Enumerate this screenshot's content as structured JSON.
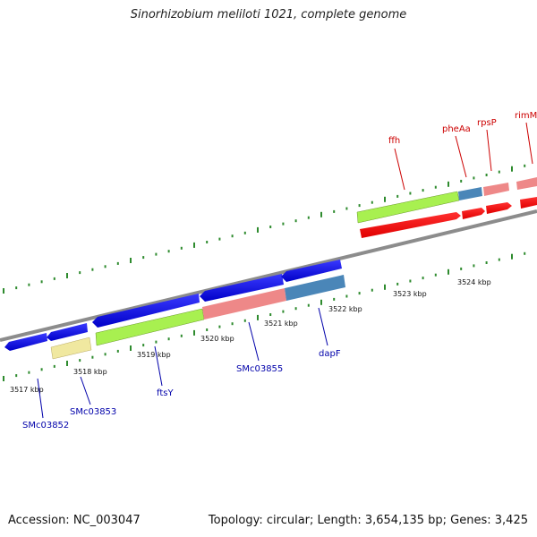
{
  "title": "Sinorhizobium meliloti 1021, complete genome",
  "footer": {
    "accession": "Accession: NC_003047",
    "summary": "Topology: circular; Length: 3,654,135 bp; Genes: 3,425"
  },
  "colors": {
    "backbone": "#8c8c8c",
    "tick": "#2e8b2e",
    "label_forward": "#cc0000",
    "label_reverse": "#0000aa",
    "blue_gene": "#1010e0",
    "red_gene": "#ff0000",
    "green_feature": "#a8f050",
    "pink_feature": "#ee8888",
    "steel_feature": "#4a86b8",
    "yellow_feature": "#f0e8a0"
  },
  "kbp_labels": [
    "3517 kbp",
    "3518 kbp",
    "3519 kbp",
    "3520 kbp",
    "3521 kbp",
    "3522 kbp",
    "3523 kbp",
    "3524 kbp"
  ],
  "genes_forward": [
    "ffh",
    "pheAa",
    "rpsP",
    "rimM"
  ],
  "genes_reverse": [
    "SMc03852",
    "SMc03853",
    "ftsY",
    "SMc03855",
    "dapF"
  ]
}
